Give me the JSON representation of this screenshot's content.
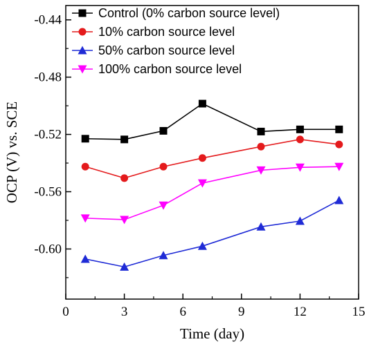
{
  "chart_data": {
    "type": "line",
    "xlabel": "Time (day)",
    "ylabel": "OCP (V) vs. SCE",
    "xlim": [
      0,
      15
    ],
    "ylim": [
      -0.635,
      -0.43
    ],
    "xticks": [
      0,
      3,
      6,
      9,
      12,
      15
    ],
    "yticks": [
      -0.44,
      -0.48,
      -0.52,
      -0.56,
      -0.6
    ],
    "ytick_labels": [
      "-0.44",
      "-0.48",
      "-0.52",
      "-0.56",
      "-0.60"
    ],
    "grid": false,
    "legend_position": "top-left",
    "x": [
      1,
      3,
      5,
      7,
      10,
      12,
      14
    ],
    "series": [
      {
        "name": "Control (0% carbon source level)",
        "color": "#000000",
        "marker": "square",
        "values": [
          -0.523,
          -0.5235,
          -0.5175,
          -0.4985,
          -0.518,
          -0.5165,
          -0.5165
        ]
      },
      {
        "name": "10% carbon source level",
        "color": "#e41a1c",
        "marker": "circle",
        "values": [
          -0.5425,
          -0.5505,
          -0.5425,
          -0.5365,
          -0.5285,
          -0.5235,
          -0.527
        ]
      },
      {
        "name": "50% carbon source level",
        "color": "#1f2bd6",
        "marker": "triangle-up",
        "values": [
          -0.607,
          -0.6125,
          -0.6045,
          -0.598,
          -0.5845,
          -0.5805,
          -0.566
        ]
      },
      {
        "name": "100% carbon source level",
        "color": "#ff00ff",
        "marker": "triangle-down",
        "values": [
          -0.5785,
          -0.5795,
          -0.5695,
          -0.554,
          -0.545,
          -0.543,
          -0.5425
        ]
      }
    ]
  }
}
